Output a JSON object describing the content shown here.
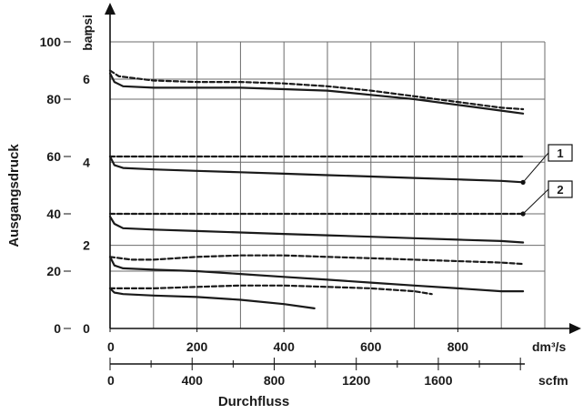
{
  "chart_data": {
    "type": "line",
    "xlabel": "Durchfluss",
    "ylabel": "Ausgangsdruck",
    "x_unit_primary": "dm³/s",
    "x_unit_secondary": "scfm",
    "y_unit_psi": "psi",
    "y_unit_bar": "bar",
    "xlim": [
      0,
      1000
    ],
    "ylim_psi": [
      0,
      100
    ],
    "x_ticks_primary": [
      0,
      200,
      400,
      600,
      800
    ],
    "x_ticks_secondary": [
      0,
      400,
      800,
      1200,
      1600
    ],
    "x_ticks_secondary_positions": [
      0,
      188.8,
      377.6,
      566.3,
      755.1
    ],
    "y_ticks_psi": [
      0,
      20,
      40,
      60,
      80,
      100
    ],
    "y_ticks_bar": [
      0,
      2,
      4,
      6
    ],
    "y_ticks_bar_positions_psi": [
      0,
      29,
      58,
      87
    ],
    "grid": true,
    "callouts": [
      {
        "label": "1",
        "series": "solid-4bar"
      },
      {
        "label": "2",
        "series": "dashed-40psi"
      }
    ],
    "series": [
      {
        "style": "dashed",
        "color": "#1a1a1a",
        "x": [
          0,
          20,
          100,
          200,
          300,
          400,
          500,
          600,
          700,
          800,
          900,
          950
        ],
        "y": [
          90,
          88,
          86.5,
          86,
          86,
          85.5,
          84.5,
          83,
          81,
          79,
          77,
          76.5
        ]
      },
      {
        "style": "solid",
        "color": "#1a1a1a",
        "x": [
          0,
          10,
          30,
          100,
          200,
          300,
          400,
          500,
          600,
          700,
          800,
          900,
          950
        ],
        "y": [
          89,
          86,
          84.5,
          84,
          84,
          84,
          83.5,
          83,
          81.5,
          80,
          78,
          76,
          75
        ]
      },
      {
        "style": "dashed",
        "color": "#1a1a1a",
        "x": [
          0,
          950
        ],
        "y": [
          60,
          60
        ]
      },
      {
        "style": "solid",
        "color": "#1a1a1a",
        "x": [
          0,
          10,
          30,
          100,
          200,
          300,
          400,
          500,
          600,
          700,
          800,
          900,
          950
        ],
        "y": [
          60,
          57,
          56,
          55.5,
          55,
          54.5,
          54,
          53.5,
          53,
          52.5,
          52,
          51.5,
          51
        ]
      },
      {
        "style": "dashed",
        "color": "#1a1a1a",
        "x": [
          0,
          950
        ],
        "y": [
          40,
          40
        ]
      },
      {
        "style": "solid",
        "color": "#1a1a1a",
        "x": [
          0,
          10,
          30,
          100,
          200,
          300,
          400,
          500,
          600,
          700,
          800,
          900,
          950
        ],
        "y": [
          39,
          36.5,
          35,
          34.5,
          34,
          33.5,
          33,
          32.5,
          32,
          31.5,
          31,
          30.5,
          30
        ]
      },
      {
        "style": "dashed",
        "color": "#1a1a1a",
        "x": [
          0,
          50,
          100,
          200,
          300,
          400,
          500,
          600,
          700,
          800,
          900,
          950
        ],
        "y": [
          25,
          24,
          24,
          25,
          25.5,
          25.5,
          25,
          24.5,
          24,
          23.5,
          23,
          22.5
        ]
      },
      {
        "style": "solid",
        "color": "#1a1a1a",
        "x": [
          0,
          10,
          30,
          100,
          200,
          300,
          400,
          500,
          600,
          700,
          800,
          900,
          950
        ],
        "y": [
          25,
          22,
          21,
          20.5,
          20,
          19,
          18,
          17,
          16,
          15,
          14,
          13,
          13
        ]
      },
      {
        "style": "dashed",
        "color": "#1a1a1a",
        "x": [
          0,
          100,
          200,
          300,
          400,
          500,
          600,
          700,
          740
        ],
        "y": [
          14,
          14,
          14.5,
          15,
          15,
          14.5,
          14,
          13,
          12
        ]
      },
      {
        "style": "solid",
        "color": "#1a1a1a",
        "x": [
          0,
          10,
          30,
          100,
          200,
          300,
          400,
          470
        ],
        "y": [
          14,
          12.5,
          12,
          11.5,
          11,
          10,
          8.5,
          7
        ]
      }
    ]
  }
}
